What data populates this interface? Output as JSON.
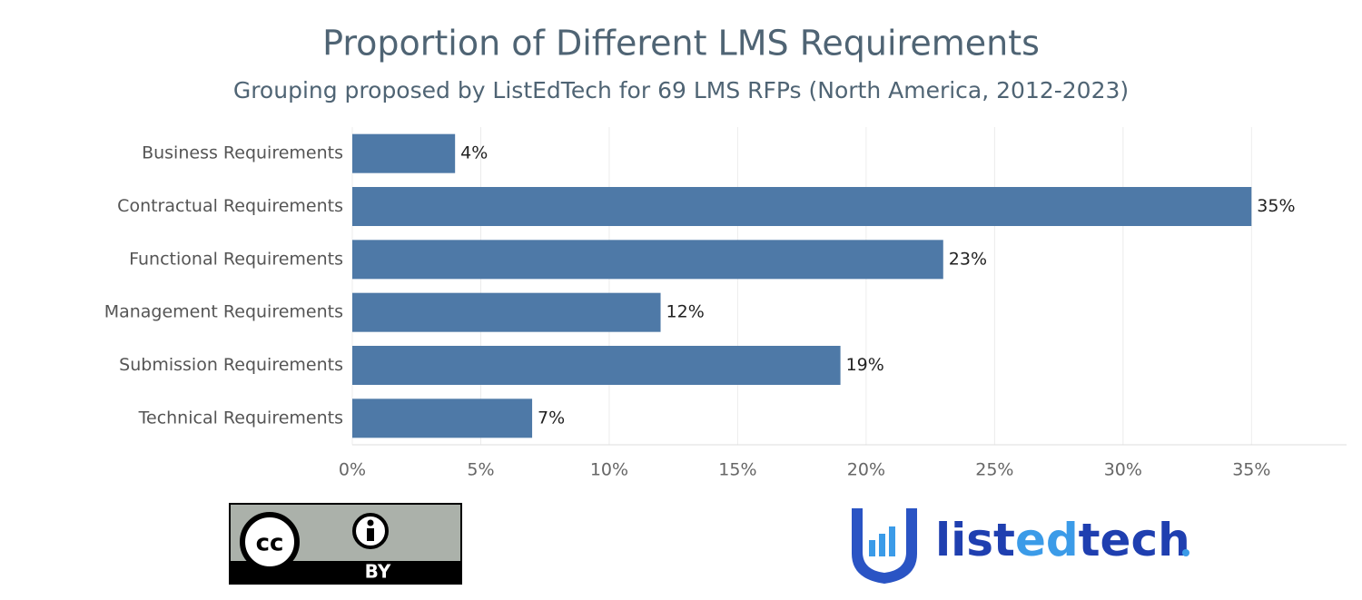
{
  "chart_data": {
    "type": "bar",
    "orientation": "horizontal",
    "title": "Proportion of Different LMS Requirements",
    "subtitle": "Grouping proposed by ListEdTech for 69 LMS RFPs (North America, 2012-2023)",
    "categories": [
      "Business Requirements",
      "Contractual Requirements",
      "Functional Requirements",
      "Management Requirements",
      "Submission Requirements",
      "Technical Requirements"
    ],
    "values": [
      4,
      35,
      23,
      12,
      19,
      7
    ],
    "value_labels": [
      "4%",
      "35%",
      "23%",
      "12%",
      "19%",
      "7%"
    ],
    "color": "#4e79a7",
    "xlim": [
      0,
      38.7
    ],
    "xticks": [
      {
        "value": 0,
        "label": "0%"
      },
      {
        "value": 5,
        "label": "5%"
      },
      {
        "value": 10,
        "label": "10%"
      },
      {
        "value": 15,
        "label": "15%"
      },
      {
        "value": 20,
        "label": "20%"
      },
      {
        "value": 25,
        "label": "25%"
      },
      {
        "value": 30,
        "label": "30%"
      },
      {
        "value": 35,
        "label": "35%"
      }
    ],
    "grid": true
  },
  "footer": {
    "license_cc": "cc",
    "license_by": "BY",
    "brand": [
      "list",
      "ed",
      "tech"
    ]
  }
}
